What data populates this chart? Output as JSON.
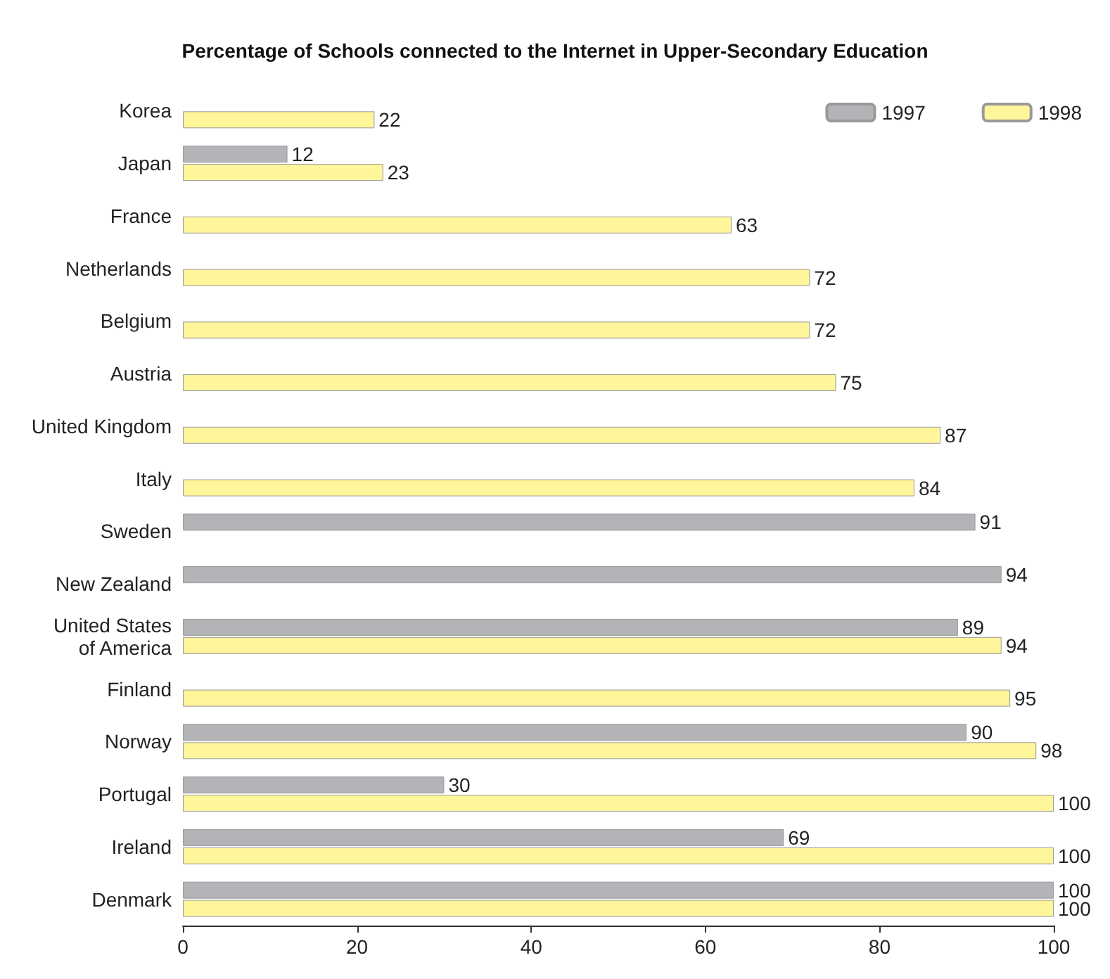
{
  "chart_data": {
    "type": "bar",
    "orientation": "horizontal",
    "title": "Percentage of Schools connected to the Internet in Upper-Secondary Education",
    "categories": [
      "Korea",
      "Japan",
      "France",
      "Netherlands",
      "Belgium",
      "Austria",
      "United Kingdom",
      "Italy",
      "Sweden",
      "New Zealand",
      "United States\nof America",
      "Finland",
      "Norway",
      "Portugal",
      "Ireland",
      "Denmark"
    ],
    "series": [
      {
        "name": "1997",
        "color": "#b4b4b8",
        "values": [
          null,
          12,
          null,
          null,
          null,
          null,
          null,
          null,
          91,
          94,
          89,
          null,
          90,
          30,
          69,
          100
        ]
      },
      {
        "name": "1998",
        "color": "#fff59a",
        "values": [
          22,
          23,
          63,
          72,
          72,
          75,
          87,
          84,
          null,
          null,
          94,
          95,
          98,
          100,
          100,
          100
        ]
      }
    ],
    "xlim": [
      0,
      100
    ],
    "xticks": [
      0,
      20,
      40,
      60,
      80,
      100
    ],
    "grid": false,
    "legend": "top right",
    "data_labels": true
  }
}
